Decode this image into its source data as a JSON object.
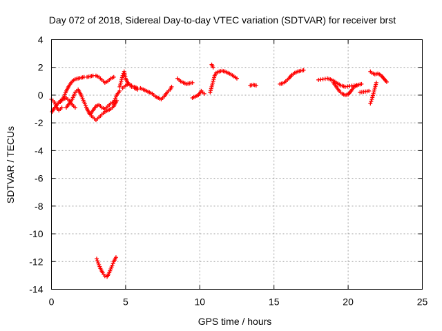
{
  "chart_data": {
    "type": "scatter",
    "title": "Day 072 of 2018, Sidereal Day-to-day VTEC variation (SDTVAR) for receiver brst",
    "xlabel": "GPS time / hours",
    "ylabel": "SDTVAR / TECUs",
    "xlim": [
      0,
      25
    ],
    "ylim": [
      -14,
      4
    ],
    "xticks": [
      "0",
      "5",
      "10",
      "15",
      "20",
      "25"
    ],
    "yticks": [
      "-14",
      "-12",
      "-10",
      "-8",
      "-6",
      "-4",
      "-2",
      "0",
      "2",
      "4"
    ],
    "grid": true,
    "marker": "plus",
    "color": "#ff0000",
    "segments": [
      {
        "name": "seg-a",
        "x": [
          0.0,
          0.2,
          0.35,
          0.5,
          0.7
        ],
        "y": [
          -0.3,
          -0.5,
          -0.9,
          -1.1,
          -0.9
        ]
      },
      {
        "name": "seg-b",
        "x": [
          0.05,
          0.15,
          0.3,
          0.45,
          0.6,
          0.8,
          1.0,
          1.2,
          1.4,
          1.6
        ],
        "y": [
          -1.2,
          -1.0,
          -0.8,
          -0.6,
          -0.4,
          -0.3,
          -0.2,
          -0.4,
          -0.7,
          -0.9
        ]
      },
      {
        "name": "seg-c",
        "x": [
          0.6,
          0.8,
          1.0,
          1.2,
          1.4,
          1.6,
          1.8,
          2.0,
          2.2,
          2.4,
          2.6,
          2.8,
          3.0,
          3.2,
          3.4,
          3.6,
          3.8,
          4.0,
          4.2
        ],
        "y": [
          -0.5,
          -0.2,
          0.3,
          0.7,
          1.0,
          1.15,
          1.2,
          1.25,
          1.3,
          1.3,
          1.35,
          1.4,
          1.4,
          1.3,
          1.1,
          0.9,
          1.0,
          1.2,
          1.3
        ]
      },
      {
        "name": "seg-d",
        "x": [
          1.0,
          1.2,
          1.4,
          1.6,
          1.8,
          2.0,
          2.2,
          2.4,
          2.6,
          2.8,
          3.0,
          3.2,
          3.4,
          3.6,
          3.8,
          4.0,
          4.2,
          4.4
        ],
        "y": [
          -0.9,
          -0.6,
          -0.3,
          0.2,
          0.4,
          0.0,
          -0.5,
          -1.0,
          -1.4,
          -1.6,
          -1.8,
          -1.6,
          -1.4,
          -1.2,
          -1.1,
          -1.0,
          -0.8,
          -0.4
        ]
      },
      {
        "name": "seg-e",
        "x": [
          2.6,
          2.8,
          3.0,
          3.2,
          3.4,
          3.6,
          3.8,
          4.0,
          4.2,
          4.4,
          4.6
        ],
        "y": [
          -1.4,
          -1.1,
          -0.8,
          -0.7,
          -0.9,
          -1.0,
          -0.8,
          -0.6,
          -0.5,
          0.0,
          0.3
        ]
      },
      {
        "name": "seg-f",
        "x": [
          4.6,
          4.7,
          4.8,
          4.9,
          5.0,
          5.2,
          5.4,
          5.6,
          5.8,
          6.0,
          6.2,
          6.4,
          6.6,
          6.8,
          7.0,
          7.2,
          7.4,
          7.6,
          7.8,
          8.0,
          8.1
        ],
        "y": [
          0.6,
          1.0,
          1.4,
          1.7,
          1.2,
          0.8,
          0.6,
          0.6,
          0.5,
          0.5,
          0.4,
          0.3,
          0.2,
          0.1,
          -0.1,
          -0.2,
          -0.3,
          -0.1,
          0.2,
          0.4,
          0.6
        ]
      },
      {
        "name": "seg-g",
        "x": [
          4.8,
          5.0,
          5.2,
          5.4,
          5.6,
          5.8
        ],
        "y": [
          0.5,
          0.7,
          0.8,
          0.7,
          0.5,
          0.4
        ]
      },
      {
        "name": "seg-h",
        "x": [
          8.5,
          8.7,
          8.9,
          9.1,
          9.3,
          9.5
        ],
        "y": [
          1.2,
          1.0,
          0.9,
          0.8,
          0.85,
          0.9
        ]
      },
      {
        "name": "seg-i",
        "x": [
          9.5,
          9.7,
          9.9,
          10.1,
          10.3
        ],
        "y": [
          -0.2,
          -0.1,
          0.0,
          0.3,
          0.1
        ]
      },
      {
        "name": "seg-j",
        "x": [
          10.7,
          10.8,
          10.9,
          11.0,
          11.1,
          11.3,
          11.5,
          11.7,
          11.9,
          12.1,
          12.3,
          12.5
        ],
        "y": [
          0.2,
          0.6,
          1.0,
          1.4,
          1.6,
          1.7,
          1.75,
          1.7,
          1.6,
          1.5,
          1.35,
          1.2
        ]
      },
      {
        "name": "seg-k",
        "x": [
          10.8,
          10.9
        ],
        "y": [
          2.2,
          2.0
        ]
      },
      {
        "name": "seg-l",
        "x": [
          13.4,
          13.6,
          13.8
        ],
        "y": [
          0.7,
          0.75,
          0.7
        ]
      },
      {
        "name": "seg-m",
        "x": [
          15.4,
          15.6,
          15.8,
          16.0,
          16.2,
          16.4,
          16.6,
          16.8,
          17.0
        ],
        "y": [
          0.8,
          0.85,
          1.0,
          1.2,
          1.45,
          1.6,
          1.7,
          1.75,
          1.8
        ]
      },
      {
        "name": "seg-n",
        "x": [
          18.0,
          18.3,
          18.6,
          18.9,
          19.2,
          19.5,
          19.8,
          20.1,
          20.4,
          20.7,
          20.9
        ],
        "y": [
          1.1,
          1.15,
          1.2,
          1.1,
          0.9,
          0.7,
          0.6,
          0.65,
          0.7,
          0.75,
          0.8
        ]
      },
      {
        "name": "seg-o",
        "x": [
          19.0,
          19.2,
          19.4,
          19.6,
          19.8,
          20.0,
          20.2,
          20.4,
          20.6
        ],
        "y": [
          0.9,
          0.6,
          0.3,
          0.1,
          0.0,
          0.05,
          0.3,
          0.6,
          0.7
        ]
      },
      {
        "name": "seg-p",
        "x": [
          20.8,
          21.4
        ],
        "y": [
          0.2,
          0.3
        ]
      },
      {
        "name": "seg-q",
        "x": [
          21.5,
          21.6,
          21.7,
          21.8,
          21.9
        ],
        "y": [
          -0.6,
          -0.3,
          0.1,
          0.5,
          0.9
        ]
      },
      {
        "name": "seg-r",
        "x": [
          21.5,
          21.6,
          21.8,
          22.0,
          22.2,
          22.4,
          22.6
        ],
        "y": [
          1.7,
          1.6,
          1.5,
          1.55,
          1.45,
          1.2,
          0.95
        ]
      },
      {
        "name": "seg-s",
        "x": [
          3.05,
          3.15,
          3.3,
          3.45,
          3.6,
          3.75,
          3.9,
          4.05,
          4.2,
          4.35
        ],
        "y": [
          -11.8,
          -12.1,
          -12.5,
          -12.8,
          -13.05,
          -13.1,
          -12.8,
          -12.4,
          -12.0,
          -11.7
        ]
      }
    ]
  }
}
